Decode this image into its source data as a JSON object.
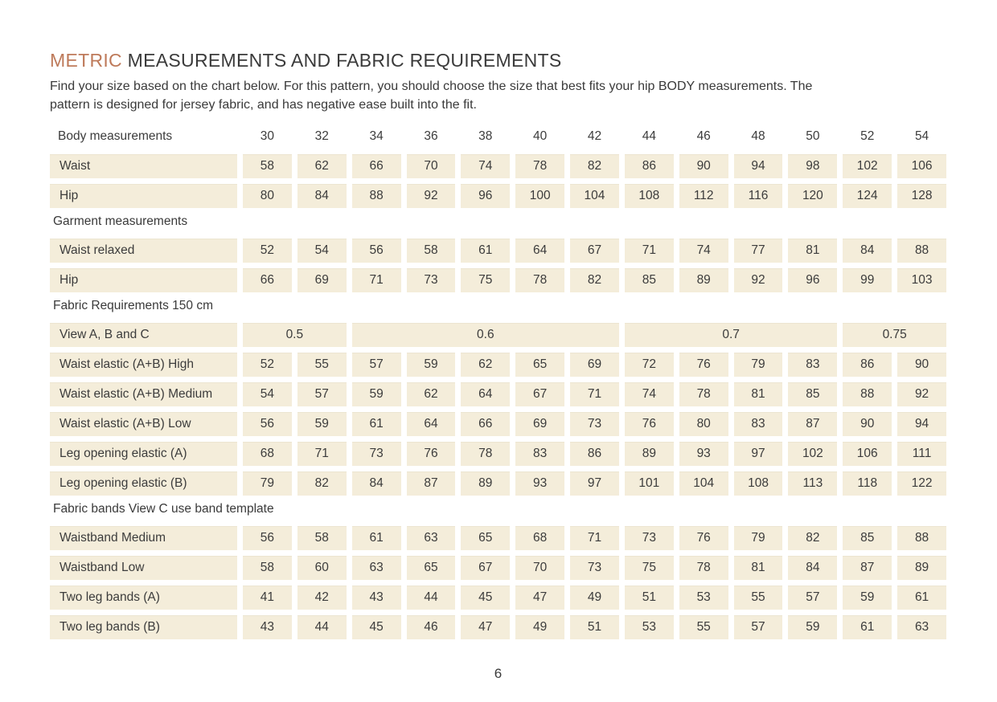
{
  "colors": {
    "accent": "#be7a5a",
    "cell_background": "#f4edda",
    "text": "#3b3b3b"
  },
  "header": {
    "title_accent": "METRIC",
    "title_rest": " MEASUREMENTS AND FABRIC REQUIREMENTS",
    "intro": "Find your size based on the chart below. For this pattern, you should choose the size that best fits your hip BODY measurements.  The\npattern is designed for jersey fabric, and has negative ease built into the fit."
  },
  "table": {
    "size_header": {
      "label": "Body measurements",
      "sizes": [
        "30",
        "32",
        "34",
        "36",
        "38",
        "40",
        "42",
        "44",
        "46",
        "48",
        "50",
        "52",
        "54"
      ]
    },
    "blocks": [
      {
        "type": "row",
        "label": "Waist",
        "values": [
          "58",
          "62",
          "66",
          "70",
          "74",
          "78",
          "82",
          "86",
          "90",
          "94",
          "98",
          "102",
          "106"
        ]
      },
      {
        "type": "row",
        "label": "Hip",
        "values": [
          "80",
          "84",
          "88",
          "92",
          "96",
          "100",
          "104",
          "108",
          "112",
          "116",
          "120",
          "124",
          "128"
        ]
      },
      {
        "type": "section",
        "label": "Garment measurements"
      },
      {
        "type": "row",
        "label": "Waist relaxed",
        "values": [
          "52",
          "54",
          "56",
          "58",
          "61",
          "64",
          "67",
          "71",
          "74",
          "77",
          "81",
          "84",
          "88"
        ]
      },
      {
        "type": "row",
        "label": "Hip",
        "values": [
          "66",
          "69",
          "71",
          "73",
          "75",
          "78",
          "82",
          "85",
          "89",
          "92",
          "96",
          "99",
          "103"
        ]
      },
      {
        "type": "section",
        "label": "Fabric Requirements 150 cm"
      },
      {
        "type": "span_row",
        "label": "View A, B and C",
        "spans": [
          {
            "label": "0.5",
            "cols": 2
          },
          {
            "label": "0.6",
            "cols": 5
          },
          {
            "label": "0.7",
            "cols": 4
          },
          {
            "label": "0.75",
            "cols": 2
          }
        ]
      },
      {
        "type": "row",
        "label": "Waist elastic (A+B) High",
        "values": [
          "52",
          "55",
          "57",
          "59",
          "62",
          "65",
          "69",
          "72",
          "76",
          "79",
          "83",
          "86",
          "90"
        ]
      },
      {
        "type": "row",
        "label": "Waist elastic (A+B) Medium",
        "values": [
          "54",
          "57",
          "59",
          "62",
          "64",
          "67",
          "71",
          "74",
          "78",
          "81",
          "85",
          "88",
          "92"
        ]
      },
      {
        "type": "row",
        "label": "Waist elastic (A+B) Low",
        "values": [
          "56",
          "59",
          "61",
          "64",
          "66",
          "69",
          "73",
          "76",
          "80",
          "83",
          "87",
          "90",
          "94"
        ]
      },
      {
        "type": "row",
        "label": "Leg opening elastic (A)",
        "values": [
          "68",
          "71",
          "73",
          "76",
          "78",
          "83",
          "86",
          "89",
          "93",
          "97",
          "102",
          "106",
          "111"
        ]
      },
      {
        "type": "row",
        "label": "Leg opening elastic (B)",
        "values": [
          "79",
          "82",
          "84",
          "87",
          "89",
          "93",
          "97",
          "101",
          "104",
          "108",
          "113",
          "118",
          "122"
        ]
      },
      {
        "type": "section",
        "label": "Fabric bands View C use band template"
      },
      {
        "type": "row",
        "label": "Waistband Medium",
        "values": [
          "56",
          "58",
          "61",
          "63",
          "65",
          "68",
          "71",
          "73",
          "76",
          "79",
          "82",
          "85",
          "88"
        ]
      },
      {
        "type": "row",
        "label": "Waistband Low",
        "values": [
          "58",
          "60",
          "63",
          "65",
          "67",
          "70",
          "73",
          "75",
          "78",
          "81",
          "84",
          "87",
          "89"
        ]
      },
      {
        "type": "row",
        "label": "Two leg bands (A)",
        "values": [
          "41",
          "42",
          "43",
          "44",
          "45",
          "47",
          "49",
          "51",
          "53",
          "55",
          "57",
          "59",
          "61"
        ]
      },
      {
        "type": "row",
        "label": "Two leg bands (B)",
        "values": [
          "43",
          "44",
          "45",
          "46",
          "47",
          "49",
          "51",
          "53",
          "55",
          "57",
          "59",
          "61",
          "63"
        ]
      }
    ]
  },
  "footer": {
    "page_number": "6"
  }
}
